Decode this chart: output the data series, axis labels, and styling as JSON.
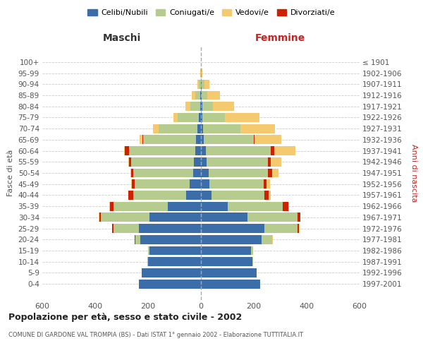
{
  "age_groups": [
    "0-4",
    "5-9",
    "10-14",
    "15-19",
    "20-24",
    "25-29",
    "30-34",
    "35-39",
    "40-44",
    "45-49",
    "50-54",
    "55-59",
    "60-64",
    "65-69",
    "70-74",
    "75-79",
    "80-84",
    "85-89",
    "90-94",
    "95-99",
    "100+"
  ],
  "birth_years": [
    "1997-2001",
    "1992-1996",
    "1987-1991",
    "1982-1986",
    "1977-1981",
    "1972-1976",
    "1967-1971",
    "1962-1966",
    "1957-1961",
    "1952-1956",
    "1947-1951",
    "1942-1946",
    "1937-1941",
    "1932-1936",
    "1927-1931",
    "1922-1926",
    "1917-1921",
    "1912-1916",
    "1907-1911",
    "1902-1906",
    "≤ 1901"
  ],
  "male": {
    "celibi": [
      235,
      225,
      200,
      195,
      230,
      235,
      195,
      125,
      55,
      42,
      30,
      28,
      22,
      18,
      14,
      8,
      4,
      2,
      1,
      0,
      0
    ],
    "coniugati": [
      0,
      0,
      2,
      5,
      18,
      95,
      185,
      205,
      200,
      210,
      225,
      235,
      250,
      200,
      145,
      80,
      35,
      20,
      8,
      1,
      0
    ],
    "vedovi": [
      0,
      0,
      0,
      0,
      2,
      2,
      2,
      2,
      1,
      2,
      2,
      3,
      5,
      10,
      20,
      15,
      20,
      12,
      5,
      1,
      0
    ],
    "divorziati": [
      0,
      0,
      0,
      0,
      2,
      5,
      5,
      15,
      20,
      10,
      10,
      10,
      15,
      3,
      2,
      0,
      0,
      0,
      0,
      0,
      0
    ]
  },
  "female": {
    "nubili": [
      225,
      210,
      195,
      190,
      230,
      240,
      175,
      100,
      40,
      32,
      28,
      22,
      18,
      10,
      8,
      6,
      4,
      3,
      2,
      0,
      0
    ],
    "coniugate": [
      0,
      0,
      2,
      8,
      38,
      125,
      190,
      210,
      200,
      205,
      225,
      230,
      245,
      190,
      140,
      85,
      40,
      20,
      10,
      2,
      0
    ],
    "vedove": [
      0,
      0,
      0,
      0,
      1,
      2,
      2,
      3,
      8,
      15,
      25,
      40,
      80,
      100,
      130,
      130,
      80,
      50,
      20,
      2,
      0
    ],
    "divorziate": [
      0,
      0,
      0,
      0,
      2,
      5,
      10,
      20,
      15,
      10,
      15,
      12,
      15,
      3,
      2,
      0,
      0,
      0,
      0,
      0,
      0
    ]
  },
  "colors": {
    "celibi": "#3b6ea8",
    "coniugati": "#b5cc8e",
    "vedovi": "#f5c96e",
    "divorziati": "#cc2200"
  },
  "title": "Popolazione per età, sesso e stato civile - 2002",
  "subtitle": "COMUNE DI GARDONE VAL TROMPIA (BS) - Dati ISTAT 1° gennaio 2002 - Elaborazione TUTTITALIA.IT",
  "xlabel_left": "Maschi",
  "xlabel_right": "Femmine",
  "ylabel_left": "Fasce di età",
  "ylabel_right": "Anni di nascita",
  "xlim": 600,
  "legend_labels": [
    "Celibi/Nubili",
    "Coniugati/e",
    "Vedovi/e",
    "Divorziati/e"
  ]
}
